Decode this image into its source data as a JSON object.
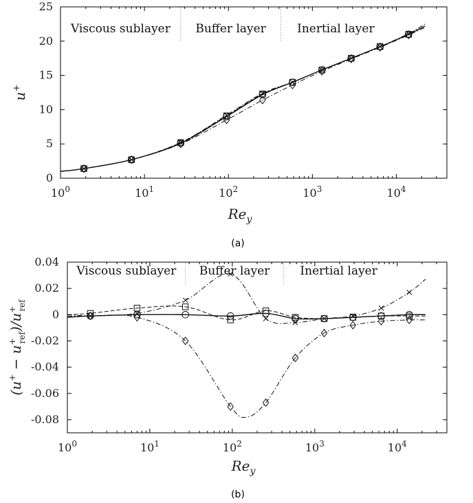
{
  "chart_data": [
    {
      "panel": "(a)",
      "type": "line",
      "xlabel": "Re_y",
      "ylabel": "u+",
      "xscale": "log",
      "xlim": [
        1,
        40000
      ],
      "ylim": [
        0,
        25
      ],
      "x_ticks": [
        1,
        10,
        100,
        1000,
        10000
      ],
      "x_tick_labels": [
        {
          "base": "10",
          "exp": "0"
        },
        {
          "base": "10",
          "exp": "1"
        },
        {
          "base": "10",
          "exp": "2"
        },
        {
          "base": "10",
          "exp": "3"
        },
        {
          "base": "10",
          "exp": "4"
        }
      ],
      "y_ticks": [
        0,
        5,
        10,
        15,
        20,
        25
      ],
      "y_tick_labels": [
        "0",
        "5",
        "10",
        "15",
        "20",
        "25"
      ],
      "regions": [
        {
          "label": "Viscous sublayer",
          "x_end": 27
        },
        {
          "label": "Buffer layer",
          "x_end": 420
        },
        {
          "label": "Inertial layer"
        }
      ],
      "series": [
        {
          "marker": "circle",
          "line": "solid",
          "x": [
            1,
            1.9,
            7,
            27,
            95,
            255,
            580,
            1300,
            2900,
            6400,
            14000,
            22000
          ],
          "y": [
            1.0,
            1.4,
            2.7,
            5.1,
            9.0,
            12.2,
            14.0,
            15.8,
            17.5,
            19.2,
            21.0,
            22.2
          ]
        },
        {
          "marker": "square",
          "line": "dashed",
          "x": [
            1,
            1.9,
            7,
            27,
            95,
            255,
            580,
            1300,
            2900,
            6400,
            14000,
            22000
          ],
          "y": [
            1.0,
            1.4,
            2.7,
            5.2,
            9.1,
            12.3,
            14.0,
            15.8,
            17.5,
            19.2,
            21.0,
            22.2
          ]
        },
        {
          "marker": "x",
          "line": "dashdot",
          "x": [
            1,
            1.9,
            7,
            27,
            95,
            255,
            580,
            1300,
            2900,
            6400,
            14000,
            22000
          ],
          "y": [
            1.0,
            1.4,
            2.7,
            5.2,
            9.2,
            12.4,
            14.0,
            15.8,
            17.5,
            19.2,
            21.1,
            22.5
          ]
        },
        {
          "marker": "diamond",
          "line": "dashdot",
          "x": [
            1,
            1.9,
            7,
            27,
            95,
            255,
            580,
            1300,
            2900,
            6400,
            14000,
            22000
          ],
          "y": [
            1.0,
            1.4,
            2.7,
            5.0,
            8.5,
            11.4,
            13.6,
            15.6,
            17.4,
            19.1,
            20.9,
            22.0
          ]
        }
      ]
    },
    {
      "panel": "(b)",
      "type": "line",
      "xlabel": "Re_y",
      "ylabel": "(u+ − u+ref)/u+ref",
      "xscale": "log",
      "xlim": [
        1,
        40000
      ],
      "ylim": [
        -0.09,
        0.04
      ],
      "x_ticks": [
        1,
        10,
        100,
        1000,
        10000
      ],
      "x_tick_labels": [
        {
          "base": "10",
          "exp": "0"
        },
        {
          "base": "10",
          "exp": "1"
        },
        {
          "base": "10",
          "exp": "2"
        },
        {
          "base": "10",
          "exp": "3"
        },
        {
          "base": "10",
          "exp": "4"
        }
      ],
      "y_ticks": [
        0.04,
        0.02,
        0,
        -0.02,
        -0.04,
        -0.06,
        -0.08
      ],
      "y_tick_labels": [
        "0.04",
        "0.02",
        "0",
        "-0.02",
        "-0.04",
        "-0.06",
        "-0.08"
      ],
      "regions": [
        {
          "label": "Viscous sublayer",
          "x_end": 27
        },
        {
          "label": "Buffer layer",
          "x_end": 420
        },
        {
          "label": "Inertial layer"
        }
      ],
      "series": [
        {
          "marker": "circle",
          "line": "solid",
          "x": [
            1,
            1.9,
            7,
            27,
            95,
            255,
            580,
            1300,
            2900,
            6400,
            14000,
            22000
          ],
          "y": [
            -0.002,
            -0.001,
            0.0,
            0.0,
            -0.001,
            0.001,
            -0.003,
            -0.003,
            -0.002,
            -0.001,
            0.0,
            0.0
          ]
        },
        {
          "marker": "square",
          "line": "dashed",
          "x": [
            1,
            1.9,
            7,
            27,
            95,
            255,
            580,
            1300,
            2900,
            6400,
            14000,
            22000
          ],
          "y": [
            0.0,
            0.001,
            0.005,
            0.006,
            -0.004,
            0.003,
            -0.002,
            -0.003,
            -0.002,
            -0.001,
            -0.001,
            -0.001
          ]
        },
        {
          "marker": "x",
          "line": "dashdot",
          "x": [
            1,
            1.9,
            7,
            27,
            95,
            255,
            580,
            1300,
            2900,
            6400,
            14000,
            22000
          ],
          "y": [
            -0.001,
            -0.001,
            0.001,
            0.011,
            0.031,
            -0.003,
            -0.006,
            -0.003,
            -0.001,
            0.005,
            0.017,
            0.027
          ]
        },
        {
          "marker": "diamond",
          "line": "dashdot",
          "x": [
            1,
            1.9,
            7,
            27,
            95,
            150,
            255,
            580,
            1300,
            2900,
            6400,
            14000,
            22000
          ],
          "y": [
            0.0,
            -0.001,
            -0.002,
            -0.02,
            -0.07,
            -0.078,
            -0.067,
            -0.033,
            -0.014,
            -0.008,
            -0.005,
            -0.004,
            -0.004
          ]
        }
      ]
    }
  ]
}
